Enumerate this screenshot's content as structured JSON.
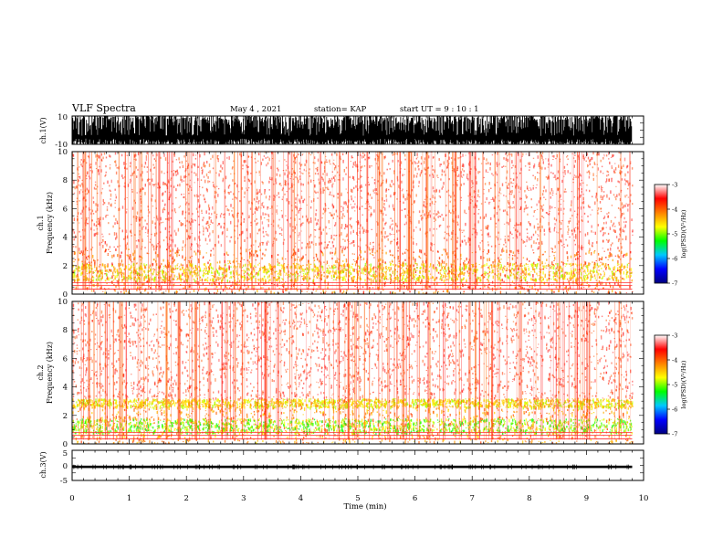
{
  "header": {
    "title": "VLF Spectra",
    "date": "May 4  , 2021",
    "station": "station= KAP",
    "start": "start  UT  =   9  : 10 : 1"
  },
  "chart_data": [
    {
      "type": "line",
      "title": "",
      "xlabel": "",
      "ylabel": "ch.1(V)",
      "xlim": [
        0,
        10
      ],
      "ylim": [
        -10,
        10
      ],
      "yticks": [
        "10",
        "-10"
      ],
      "series": [
        {
          "x": [
            0,
            9.8
          ],
          "y": [
            -10,
            10
          ]
        }
      ]
    },
    {
      "type": "heatmap",
      "title": "",
      "xlabel": "",
      "ylabel": "ch.1\nFrequency (kHz)",
      "xlim": [
        0,
        10
      ],
      "ylim": [
        0,
        10
      ],
      "yticks": [
        "0",
        "2",
        "4",
        "6",
        "8",
        "10"
      ],
      "colorbar": {
        "label": "log(PSD)(V²/Hz)",
        "ticks": [
          "-3",
          "-4",
          "-5",
          "-6",
          "-7"
        ],
        "range": [
          -7,
          -3
        ],
        "colors": [
          "#000080",
          "#0000ff",
          "#00c8ff",
          "#00ff00",
          "#ffff00",
          "#ff8000",
          "#ff0000",
          "#ffffff"
        ]
      },
      "bands": [
        {
          "from_khz": 0,
          "to_khz": 3.2,
          "level": -4.0
        },
        {
          "from_khz": 1.0,
          "to_khz": 2.2,
          "level": -4.6
        },
        {
          "from_khz": 3.2,
          "to_khz": 10,
          "level": -3.7
        }
      ]
    },
    {
      "type": "heatmap",
      "title": "",
      "xlabel": "",
      "ylabel": "ch.2\nFrequency (kHz)",
      "xlim": [
        0,
        10
      ],
      "ylim": [
        0,
        10
      ],
      "yticks": [
        "0",
        "2",
        "4",
        "6",
        "8",
        "10"
      ],
      "colorbar": {
        "label": "log(PSD)(V²/Hz)",
        "ticks": [
          "-3",
          "-4",
          "-5",
          "-6",
          "-7"
        ],
        "range": [
          -7,
          -3
        ],
        "colors": [
          "#000080",
          "#0000ff",
          "#00c8ff",
          "#00ff00",
          "#ffff00",
          "#ff8000",
          "#ff0000",
          "#ffffff"
        ]
      },
      "bands": [
        {
          "from_khz": 0,
          "to_khz": 3.2,
          "level": -4.2
        },
        {
          "from_khz": 0.8,
          "to_khz": 1.8,
          "level": -5.0
        },
        {
          "from_khz": 2.6,
          "to_khz": 3.2,
          "level": -4.6
        },
        {
          "from_khz": 3.2,
          "to_khz": 10,
          "level": -3.7
        }
      ]
    },
    {
      "type": "line",
      "title": "",
      "xlabel": "Time (min)",
      "ylabel": "ch.3(V)",
      "xlim": [
        0,
        10
      ],
      "ylim": [
        -5,
        5
      ],
      "yticks": [
        "5",
        "0",
        "-5"
      ],
      "xticks": [
        "0",
        "1",
        "2",
        "3",
        "4",
        "5",
        "6",
        "7",
        "8",
        "9",
        "10"
      ],
      "series": [
        {
          "x": [
            0,
            9.8
          ],
          "y": [
            -0.9,
            -0.1
          ]
        }
      ]
    }
  ]
}
